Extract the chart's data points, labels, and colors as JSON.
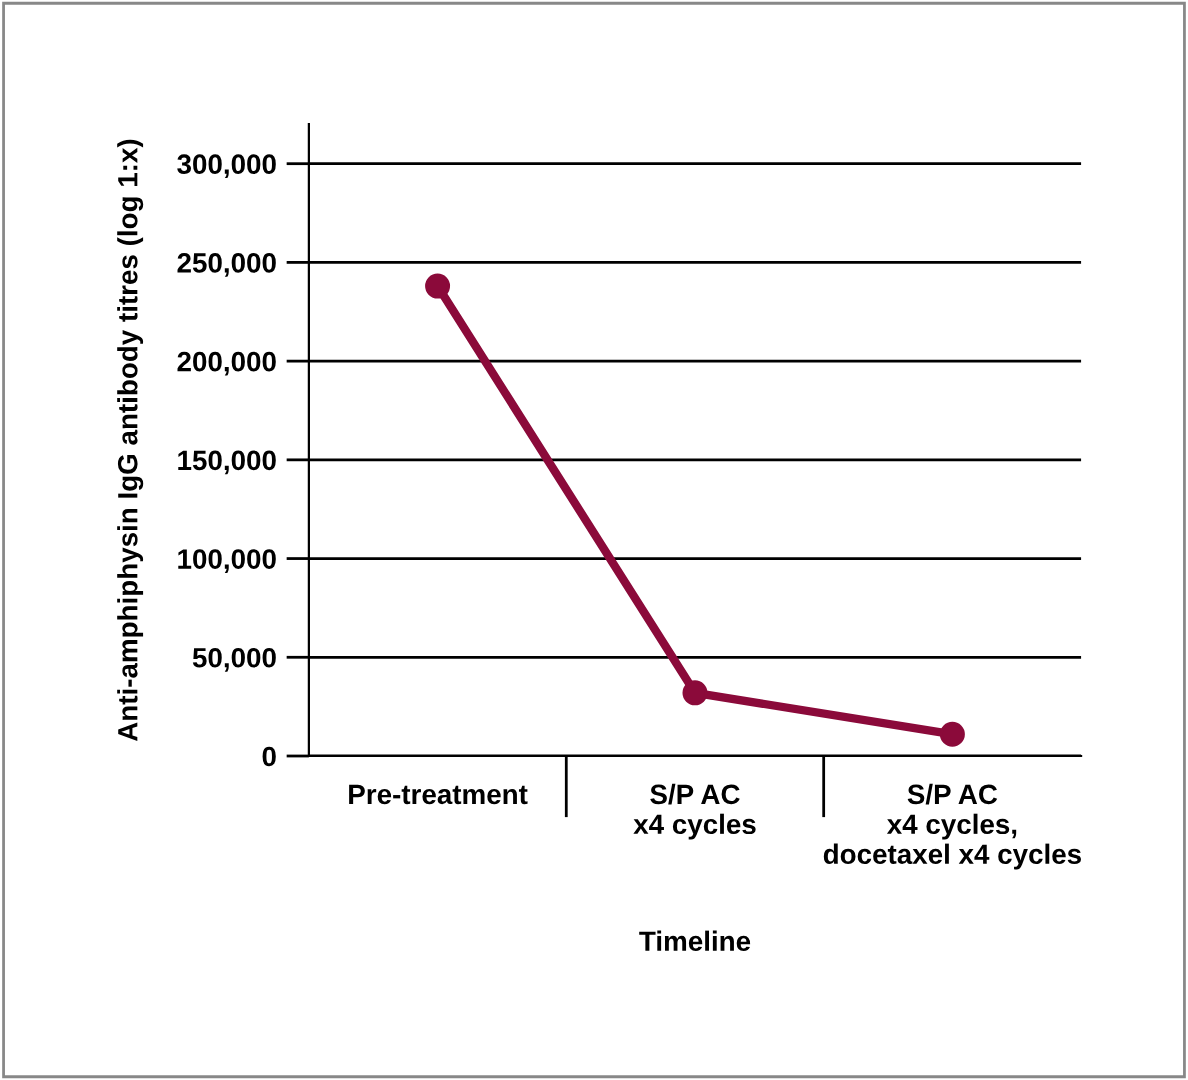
{
  "chart_data": {
    "type": "line",
    "xlabel": "Timeline",
    "ylabel": "Anti-amphiphysin IgG antibody titres (log 1:x)",
    "categories": [
      "Pre-treatment",
      "S/P AC\nx4 cycles",
      "S/P AC\nx4 cycles,\ndocetaxel x4 cycles"
    ],
    "series": [
      {
        "color": "#8b0a3a",
        "values": [
          238000,
          32000,
          11000
        ]
      }
    ],
    "ylim": [
      0,
      320000
    ],
    "yticks": [
      {
        "value": 0,
        "label": "0"
      },
      {
        "value": 50000,
        "label": "50,000"
      },
      {
        "value": 100000,
        "label": "100,000"
      },
      {
        "value": 150000,
        "label": "150,000"
      },
      {
        "value": 200000,
        "label": "200,000"
      },
      {
        "value": 250000,
        "label": "250,000"
      },
      {
        "value": 300000,
        "label": "300,000"
      }
    ],
    "grid": "y",
    "marker": "circle",
    "line_style": "solid",
    "legend": false
  }
}
